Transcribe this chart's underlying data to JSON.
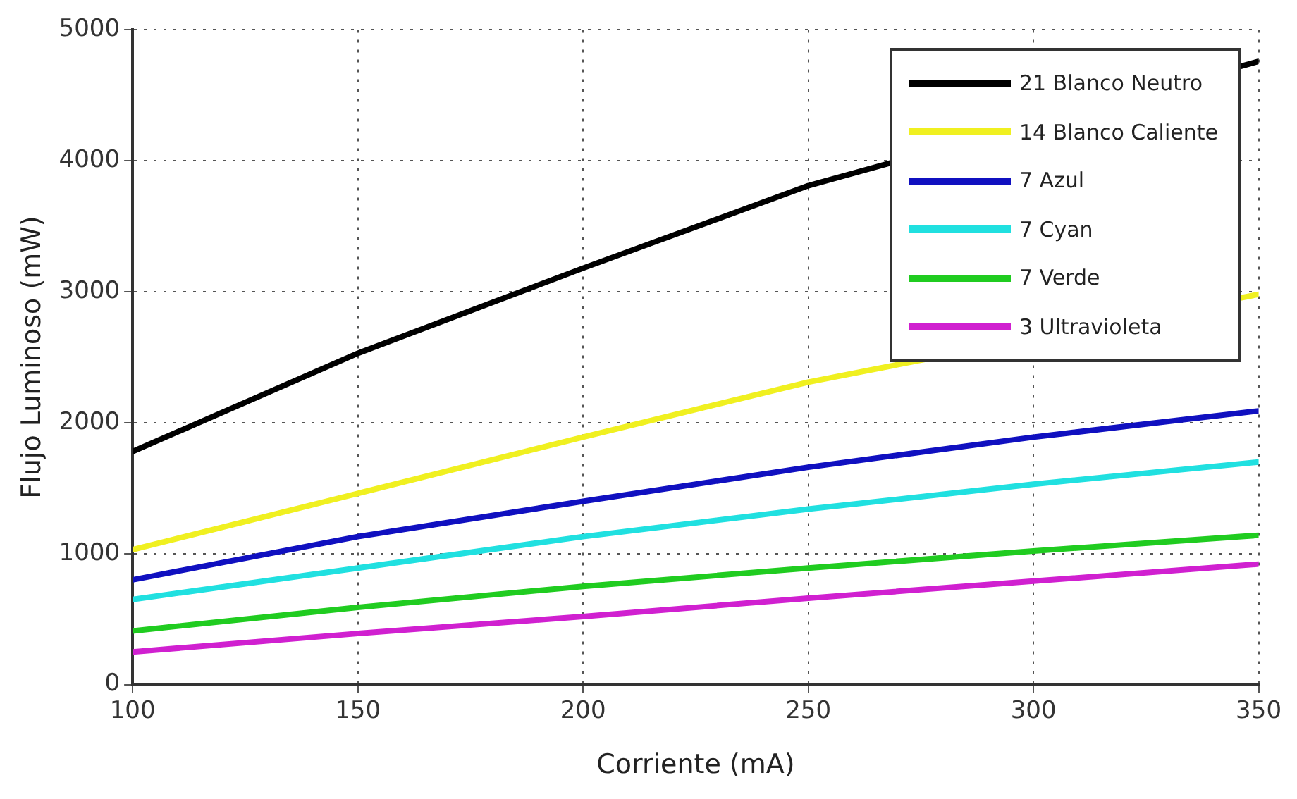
{
  "chart_data": {
    "type": "line",
    "xlabel": "Corriente (mA)",
    "ylabel": "Flujo Luminoso (mW)",
    "xlim": [
      100,
      350
    ],
    "xticks": [
      100,
      150,
      200,
      250,
      300,
      350
    ],
    "ylim": [
      0,
      5000
    ],
    "yticks": [
      0,
      1000,
      2000,
      3000,
      4000,
      5000
    ],
    "grid": true,
    "legend": "top right",
    "marker": "none",
    "line_style": "solid",
    "series": [
      {
        "name": "21 Blanco Neutro",
        "color": "#000000",
        "x": [
          100,
          150,
          200,
          250,
          350
        ],
        "values": [
          1780,
          2530,
          3180,
          3810,
          4760
        ]
      },
      {
        "name": "14 Blanco Caliente",
        "color": "#f0f020",
        "x": [
          100,
          150,
          200,
          250,
          350
        ],
        "values": [
          1030,
          1460,
          1890,
          2310,
          2980
        ]
      },
      {
        "name": "7 Azul",
        "color": "#1010c0",
        "x": [
          100,
          150,
          200,
          250,
          300,
          350
        ],
        "values": [
          800,
          1130,
          1400,
          1660,
          1890,
          2090
        ]
      },
      {
        "name": "7 Cyan",
        "color": "#20e0e0",
        "x": [
          100,
          150,
          200,
          250,
          300,
          350
        ],
        "values": [
          650,
          890,
          1130,
          1340,
          1530,
          1700
        ]
      },
      {
        "name": "7 Verde",
        "color": "#20cc20",
        "x": [
          100,
          150,
          200,
          250,
          300,
          350
        ],
        "values": [
          410,
          590,
          750,
          890,
          1020,
          1140
        ]
      },
      {
        "name": "3 Ultravioleta",
        "color": "#d020d0",
        "x": [
          100,
          150,
          200,
          250,
          300,
          350
        ],
        "values": [
          250,
          390,
          520,
          660,
          790,
          920
        ]
      }
    ]
  }
}
